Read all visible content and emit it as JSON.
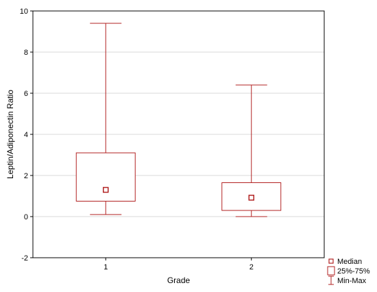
{
  "chart_data": {
    "type": "box",
    "xlabel": "Grade",
    "ylabel": "Leptin/Adiponectin Ratio",
    "ylim": [
      -2,
      10
    ],
    "yticks": [
      -2,
      0,
      2,
      4,
      6,
      8,
      10
    ],
    "grid": true,
    "categories": [
      "1",
      "2"
    ],
    "boxes": [
      {
        "category": "1",
        "min": 0.1,
        "q1": 0.75,
        "median": 1.3,
        "q3": 3.1,
        "max": 9.4
      },
      {
        "category": "2",
        "min": 0.0,
        "q1": 0.3,
        "median": 0.92,
        "q3": 1.65,
        "max": 6.4
      }
    ],
    "legend": {
      "position": "bottom-right",
      "entries": [
        {
          "symbol": "median",
          "label": "Median"
        },
        {
          "symbol": "box",
          "label": "25%-75%"
        },
        {
          "symbol": "whisker",
          "label": "Min-Max"
        }
      ]
    },
    "colors": {
      "series": "#b22222",
      "grid": "#d9d9d9",
      "axis": "#000000"
    }
  }
}
